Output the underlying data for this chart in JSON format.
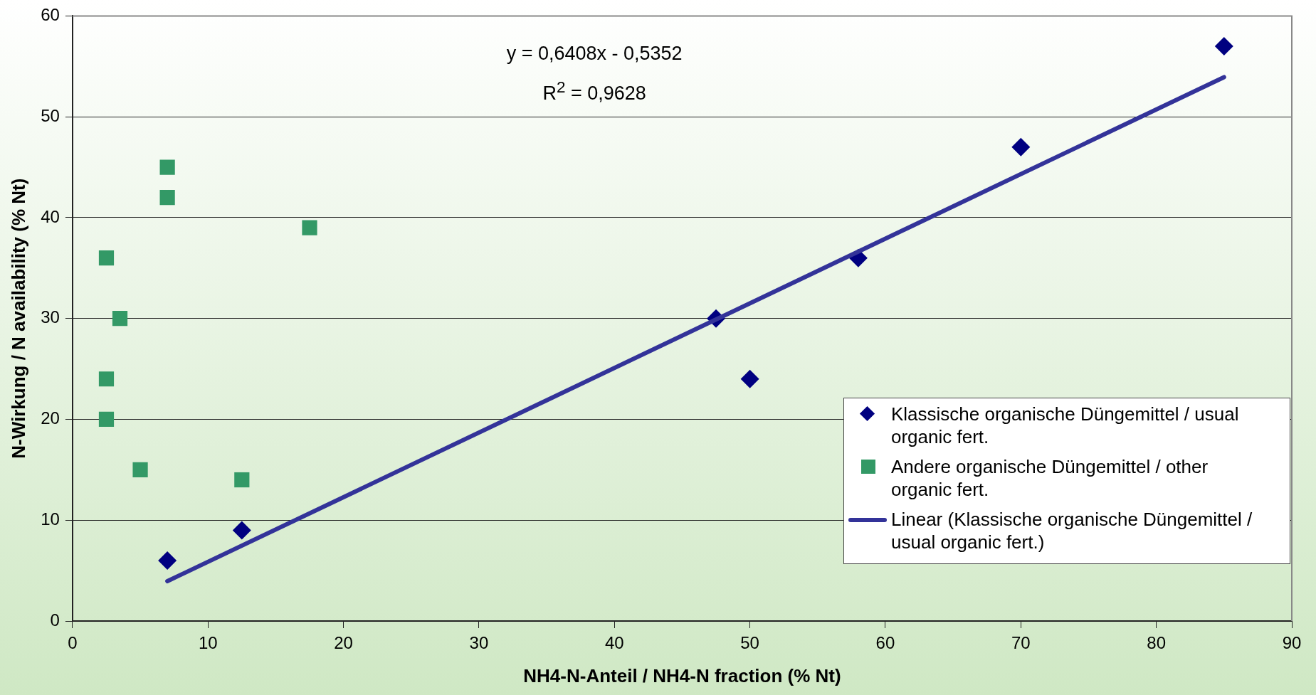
{
  "chart_data": {
    "type": "scatter",
    "xlabel": "NH4-N-Anteil / NH4-N fraction (% Nt)",
    "ylabel": "N-Wirkung / N availability (% Nt)",
    "xlim": [
      0,
      90
    ],
    "xticks": [
      0,
      10,
      20,
      30,
      40,
      50,
      60,
      70,
      80,
      90
    ],
    "ylim": [
      0,
      60
    ],
    "yticks": [
      0,
      10,
      20,
      30,
      40,
      50,
      60
    ],
    "grid": "y",
    "legend": "bottom right",
    "annotations": [
      "y = 0,6408x - 0,5352",
      "R$^{2}$ = 0,9628"
    ],
    "series": [
      {
        "name": "Klassische organische Düngemittel / usual organic fert.",
        "color": "#000080",
        "marker": "diamond",
        "x": [
          7,
          12.5,
          47.5,
          50,
          58,
          70,
          85
        ],
        "values": [
          6,
          9,
          30,
          24,
          36,
          47,
          57
        ]
      },
      {
        "name": "Andere organische Düngemittel / other organic fert.",
        "color": "#339966",
        "marker": "square",
        "x": [
          2.5,
          2.5,
          2.5,
          3.5,
          5,
          7,
          7,
          12.5,
          17.5
        ],
        "values": [
          36,
          24,
          20,
          30,
          15,
          45,
          42,
          14,
          39
        ]
      },
      {
        "name": "Linear (Klassische organische Düngemittel / usual organic fert.)",
        "type": "line",
        "color": "#333399",
        "marker": "none",
        "x": [
          7,
          85
        ],
        "values": [
          3.95,
          53.93
        ]
      }
    ]
  }
}
